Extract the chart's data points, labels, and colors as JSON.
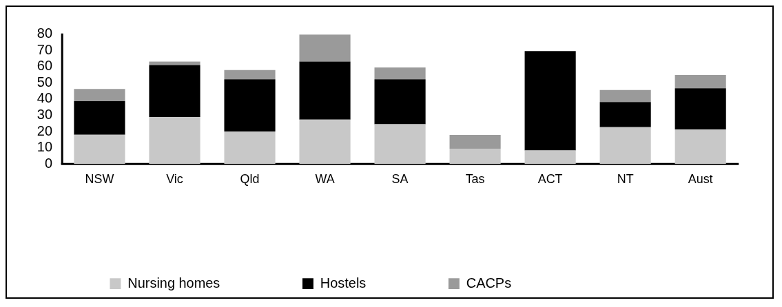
{
  "chart_data": {
    "type": "bar",
    "stacked": true,
    "categories": [
      "NSW",
      "Vic",
      "Qld",
      "WA",
      "SA",
      "Tas",
      "ACT",
      "NT",
      "Aust"
    ],
    "series": [
      {
        "name": "Nursing homes",
        "color": "#c8c8c8",
        "values": [
          18,
          28.9,
          20,
          27.3,
          24.5,
          9.4,
          8.4,
          22.7,
          21.3
        ]
      },
      {
        "name": "Hostels",
        "color": "#000000",
        "values": [
          20.7,
          32.1,
          32.2,
          35.8,
          27.7,
          0,
          61.2,
          15.5,
          25.4
        ]
      },
      {
        "name": "CACPs",
        "color": "#9a9a9a",
        "values": [
          7.5,
          2.1,
          5.7,
          16.6,
          7.3,
          8.5,
          0,
          7.4,
          8.1
        ]
      }
    ],
    "ylim": [
      0,
      80
    ],
    "yticks": [
      0,
      10,
      20,
      30,
      40,
      50,
      60,
      70,
      80
    ],
    "grid": false,
    "legend": "bottom"
  }
}
